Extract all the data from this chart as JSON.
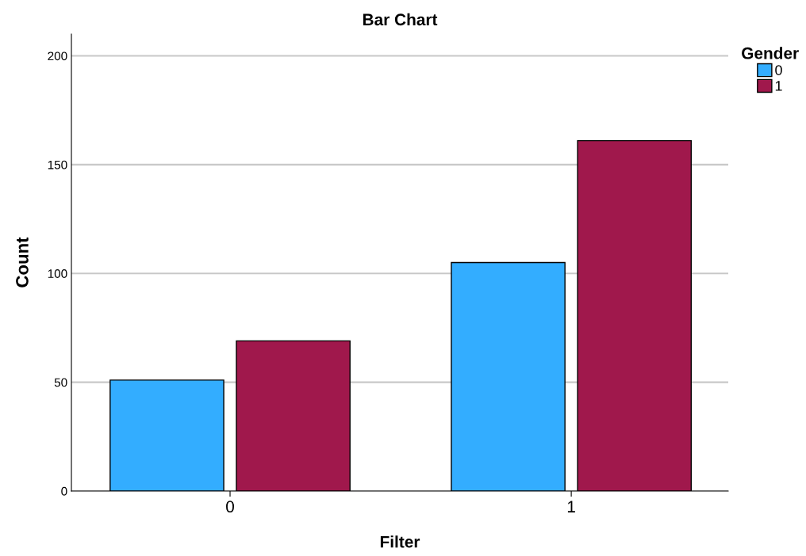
{
  "chart_data": {
    "type": "bar",
    "title": "Bar Chart",
    "xlabel": "Filter",
    "ylabel": "Count",
    "legend_title": "Gender",
    "categories": [
      "0",
      "1"
    ],
    "series": [
      {
        "name": "0",
        "color": "#33adff",
        "values": [
          51,
          105
        ]
      },
      {
        "name": "1",
        "color": "#a0184c",
        "values": [
          69,
          161
        ]
      }
    ],
    "ylim": [
      0,
      210
    ],
    "yticks": [
      0,
      50,
      100,
      150,
      200
    ],
    "grid": "y",
    "legend": "top right"
  }
}
